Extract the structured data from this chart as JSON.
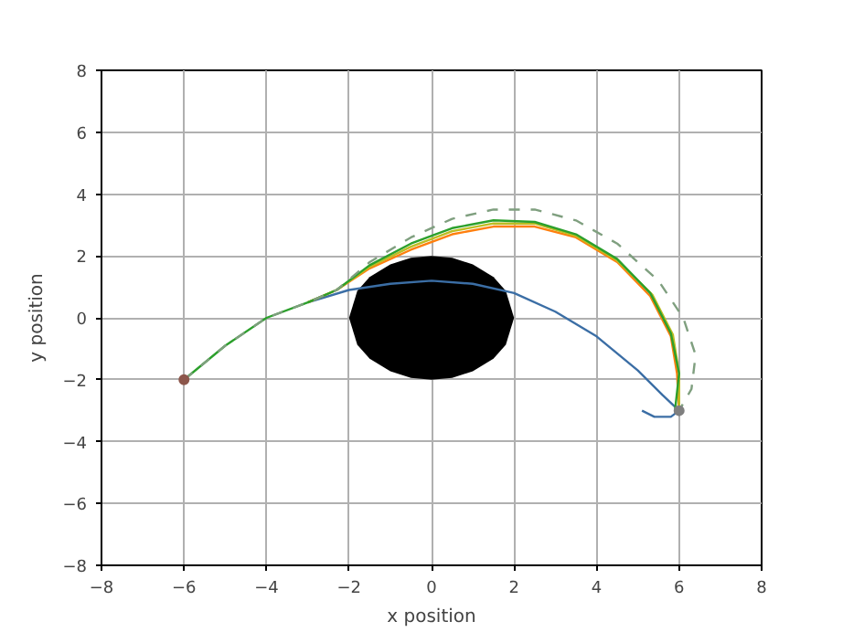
{
  "chart_data": {
    "type": "line",
    "xlabel": "x position",
    "ylabel": "y position",
    "xlim": [
      -8,
      8
    ],
    "ylim": [
      -8,
      8
    ],
    "xticks": [
      -8,
      -6,
      -4,
      -2,
      0,
      2,
      4,
      6,
      8
    ],
    "yticks": [
      -8,
      -6,
      -4,
      -2,
      0,
      2,
      4,
      6,
      8
    ],
    "grid": true,
    "series": [
      {
        "type": "area",
        "color": "#000000",
        "x": [
          -2,
          -1.8,
          -1.5,
          -1,
          -0.5,
          0,
          0.5,
          1,
          1.5,
          1.8,
          2
        ],
        "values": [
          0,
          0.87,
          1.32,
          1.73,
          1.94,
          2,
          1.94,
          1.73,
          1.32,
          0.87,
          0
        ]
      },
      {
        "type": "area",
        "color": "#000000",
        "x": [
          -2,
          -1.8,
          -1.5,
          -1,
          -0.5,
          0,
          0.5,
          1,
          1.5,
          1.8,
          2
        ],
        "values": [
          0,
          -0.87,
          -1.32,
          -1.73,
          -1.94,
          -2,
          -1.94,
          -1.73,
          -1.32,
          -0.87,
          0
        ]
      },
      {
        "color": "#3b6ea5",
        "x": [
          -3,
          -2,
          -1,
          0,
          1,
          2,
          3,
          4,
          5,
          5.6,
          6,
          5.8,
          5.4,
          5.1
        ],
        "values": [
          0.5,
          0.9,
          1.1,
          1.2,
          1.1,
          0.8,
          0.2,
          -0.6,
          -1.7,
          -2.5,
          -3,
          -3.2,
          -3.2,
          -3.0
        ]
      },
      {
        "color": "#ff7f0e",
        "x": [
          -3,
          -2.3,
          -1.5,
          -0.5,
          0.5,
          1.5,
          2.5,
          3.5,
          4.5,
          5.3,
          5.8,
          5.95,
          6
        ],
        "values": [
          0.5,
          0.9,
          1.6,
          2.2,
          2.7,
          2.95,
          2.95,
          2.6,
          1.8,
          0.7,
          -0.6,
          -1.8,
          -3
        ]
      },
      {
        "color": "#bcbd22",
        "x": [
          -3,
          -2.3,
          -1.5,
          -0.5,
          0.5,
          1.5,
          2.5,
          3.5,
          4.5,
          5.35,
          5.85,
          6,
          6
        ],
        "values": [
          0.5,
          0.9,
          1.65,
          2.3,
          2.8,
          3.05,
          3.05,
          2.65,
          1.85,
          0.75,
          -0.55,
          -1.8,
          -3
        ]
      },
      {
        "color": "#2ca02c",
        "x": [
          -6,
          -5,
          -4,
          -3,
          -2.3,
          -1.5,
          -0.5,
          0.5,
          1.5,
          2.5,
          3.5,
          4.5,
          5.3,
          5.8,
          6.0,
          5.9
        ],
        "values": [
          -2,
          -0.9,
          0,
          0.5,
          0.9,
          1.7,
          2.4,
          2.9,
          3.15,
          3.1,
          2.7,
          1.9,
          0.8,
          -0.5,
          -1.8,
          -3.0
        ]
      },
      {
        "color": "#7f9f7f",
        "line_style": "dashed",
        "x": [
          -6,
          -5,
          -4,
          -3,
          -2.3,
          -1.5,
          -0.5,
          0.5,
          1.5,
          2.5,
          3.5,
          4.5,
          5.5,
          6.1,
          6.4,
          6.3,
          6
        ],
        "values": [
          -2,
          -0.9,
          0,
          0.5,
          0.9,
          1.8,
          2.6,
          3.2,
          3.5,
          3.5,
          3.15,
          2.4,
          1.2,
          0,
          -1.2,
          -2.3,
          -3
        ]
      },
      {
        "type": "scatter",
        "marker": "circle",
        "colors": [
          "#8c564b",
          "#7f7f7f"
        ],
        "x": [
          -6,
          6
        ],
        "values": [
          -2,
          -3
        ]
      }
    ]
  }
}
